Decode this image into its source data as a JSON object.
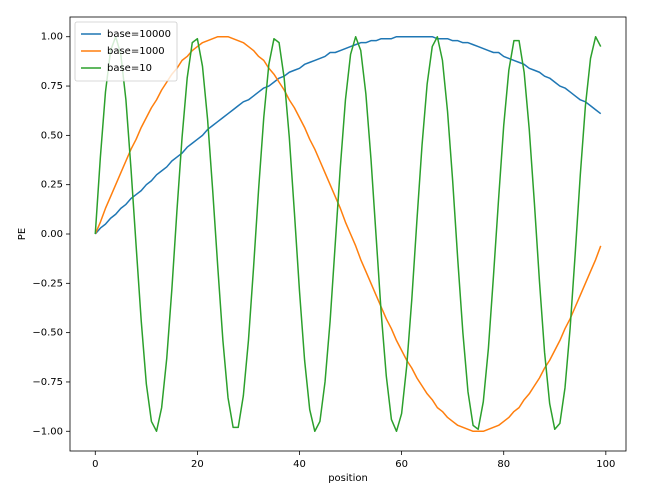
{
  "chart_data": {
    "type": "line",
    "xlabel": "position",
    "ylabel": "PE",
    "x": [
      0,
      1,
      2,
      3,
      4,
      5,
      6,
      7,
      8,
      9,
      10,
      11,
      12,
      13,
      14,
      15,
      16,
      17,
      18,
      19,
      20,
      21,
      22,
      23,
      24,
      25,
      26,
      27,
      28,
      29,
      30,
      31,
      32,
      33,
      34,
      35,
      36,
      37,
      38,
      39,
      40,
      41,
      42,
      43,
      44,
      45,
      46,
      47,
      48,
      49,
      50,
      51,
      52,
      53,
      54,
      55,
      56,
      57,
      58,
      59,
      60,
      61,
      62,
      63,
      64,
      65,
      66,
      67,
      68,
      69,
      70,
      71,
      72,
      73,
      74,
      75,
      76,
      77,
      78,
      79,
      80,
      81,
      82,
      83,
      84,
      85,
      86,
      87,
      88,
      89,
      90,
      91,
      92,
      93,
      94,
      95,
      96,
      97,
      98,
      99
    ],
    "series": [
      {
        "name": "base=10000",
        "color": "#1f77b4",
        "values": [
          0,
          0.03,
          0.05,
          0.08,
          0.1,
          0.13,
          0.15,
          0.18,
          0.2,
          0.22,
          0.25,
          0.27,
          0.3,
          0.32,
          0.34,
          0.37,
          0.39,
          0.41,
          0.44,
          0.46,
          0.48,
          0.5,
          0.53,
          0.55,
          0.57,
          0.59,
          0.61,
          0.63,
          0.65,
          0.67,
          0.68,
          0.7,
          0.72,
          0.74,
          0.75,
          0.77,
          0.79,
          0.8,
          0.82,
          0.83,
          0.84,
          0.86,
          0.87,
          0.88,
          0.89,
          0.9,
          0.92,
          0.92,
          0.93,
          0.94,
          0.95,
          0.96,
          0.97,
          0.97,
          0.98,
          0.98,
          0.99,
          0.99,
          0.99,
          1,
          1,
          1,
          1,
          1,
          1,
          1,
          1,
          0.99,
          0.99,
          0.99,
          0.98,
          0.98,
          0.97,
          0.97,
          0.96,
          0.95,
          0.94,
          0.93,
          0.92,
          0.92,
          0.9,
          0.89,
          0.88,
          0.87,
          0.86,
          0.84,
          0.83,
          0.82,
          0.8,
          0.79,
          0.77,
          0.75,
          0.74,
          0.72,
          0.7,
          0.68,
          0.67,
          0.65,
          0.63,
          0.61
        ]
      },
      {
        "name": "base=1000",
        "color": "#ff7f0e",
        "values": [
          0,
          0.06,
          0.13,
          0.19,
          0.25,
          0.31,
          0.37,
          0.43,
          0.48,
          0.54,
          0.59,
          0.64,
          0.68,
          0.73,
          0.77,
          0.81,
          0.84,
          0.88,
          0.9,
          0.93,
          0.95,
          0.97,
          0.98,
          0.99,
          1,
          1,
          1,
          0.99,
          0.98,
          0.97,
          0.95,
          0.93,
          0.9,
          0.88,
          0.84,
          0.81,
          0.77,
          0.73,
          0.68,
          0.64,
          0.59,
          0.54,
          0.48,
          0.43,
          0.37,
          0.31,
          0.25,
          0.19,
          0.13,
          0.06,
          0,
          -0.06,
          -0.13,
          -0.19,
          -0.25,
          -0.31,
          -0.37,
          -0.43,
          -0.48,
          -0.54,
          -0.59,
          -0.64,
          -0.68,
          -0.73,
          -0.77,
          -0.81,
          -0.84,
          -0.88,
          -0.9,
          -0.93,
          -0.95,
          -0.97,
          -0.98,
          -0.99,
          -1,
          -1,
          -1,
          -0.99,
          -0.98,
          -0.97,
          -0.95,
          -0.93,
          -0.9,
          -0.88,
          -0.84,
          -0.81,
          -0.77,
          -0.73,
          -0.68,
          -0.64,
          -0.59,
          -0.54,
          -0.48,
          -0.43,
          -0.37,
          -0.31,
          -0.25,
          -0.19,
          -0.13,
          -0.06
        ]
      },
      {
        "name": "base=10",
        "color": "#2ca02c",
        "values": [
          0,
          0.39,
          0.72,
          0.93,
          1,
          0.91,
          0.68,
          0.33,
          -0.06,
          -0.44,
          -0.76,
          -0.95,
          -1,
          -0.88,
          -0.63,
          -0.28,
          0.12,
          0.49,
          0.79,
          0.97,
          0.99,
          0.85,
          0.58,
          0.22,
          -0.17,
          -0.54,
          -0.83,
          -0.98,
          -0.98,
          -0.82,
          -0.54,
          -0.17,
          0.23,
          0.59,
          0.86,
          0.99,
          0.97,
          0.79,
          0.49,
          0.11,
          -0.29,
          -0.64,
          -0.89,
          -1,
          -0.95,
          -0.75,
          -0.44,
          -0.05,
          0.34,
          0.68,
          0.91,
          1,
          0.93,
          0.71,
          0.38,
          -0.01,
          -0.4,
          -0.72,
          -0.94,
          -1,
          -0.91,
          -0.67,
          -0.33,
          0.07,
          0.45,
          0.76,
          0.95,
          1,
          0.88,
          0.62,
          0.27,
          -0.13,
          -0.5,
          -0.8,
          -0.97,
          -0.99,
          -0.85,
          -0.58,
          -0.21,
          0.18,
          0.55,
          0.83,
          0.98,
          0.98,
          0.82,
          0.53,
          0.16,
          -0.24,
          -0.6,
          -0.86,
          -0.99,
          -0.96,
          -0.78,
          -0.48,
          -0.1,
          0.3,
          0.65,
          0.89,
          1,
          0.95
        ]
      }
    ],
    "xlim": [
      -4.95,
      103.95
    ],
    "xticks": [
      0,
      20,
      40,
      60,
      80,
      100
    ],
    "ylim": [
      -1.1,
      1.1
    ],
    "yticks": [
      {
        "value": -1,
        "label": "−1.00"
      },
      {
        "value": -0.75,
        "label": "−0.75"
      },
      {
        "value": -0.5,
        "label": "−0.50"
      },
      {
        "value": -0.25,
        "label": "−0.25"
      },
      {
        "value": 0,
        "label": "0.00"
      },
      {
        "value": 0.25,
        "label": "0.25"
      },
      {
        "value": 0.5,
        "label": "0.50"
      },
      {
        "value": 0.75,
        "label": "0.75"
      },
      {
        "value": 1,
        "label": "1.00"
      }
    ],
    "legend": "upper left",
    "grid": false
  }
}
